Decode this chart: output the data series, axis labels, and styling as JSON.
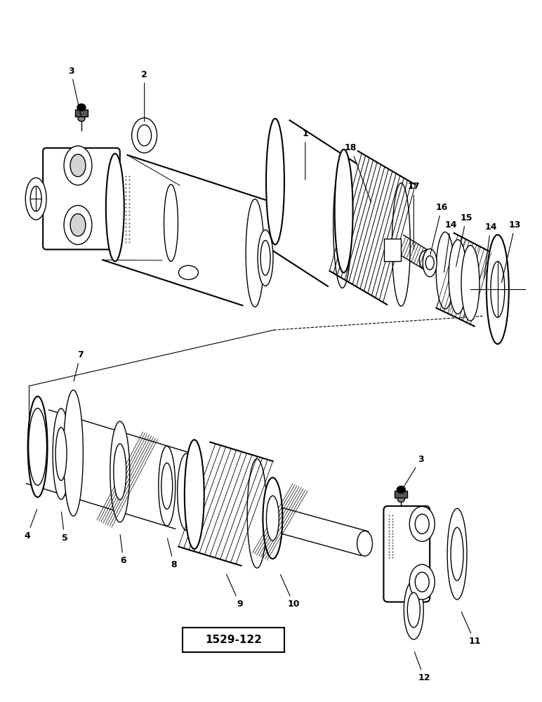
{
  "bg_color": "#ffffff",
  "line_color": "#000000",
  "fig_width": 7.72,
  "fig_height": 10.0,
  "diagram_id": "1529-122"
}
